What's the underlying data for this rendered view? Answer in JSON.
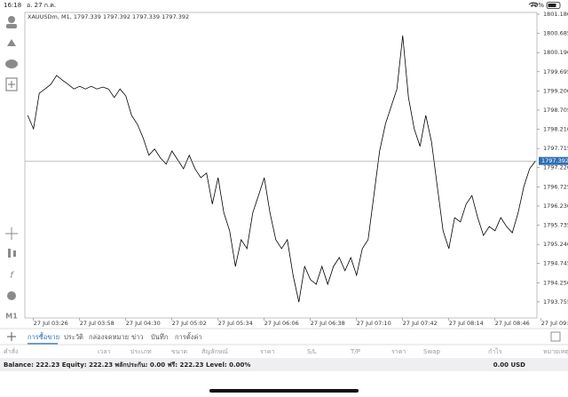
{
  "status_bar": {
    "time": "16:18",
    "date": "อ. 27 ก.ค.",
    "battery": "79%"
  },
  "toolbar": {
    "timeframe": "M1"
  },
  "chart_data": {
    "type": "line",
    "title": "XAUUSDm, M1, 1797.339 1797.392 1797.339 1797.392",
    "categories": [
      null,
      "27 Jul 03:26",
      null,
      null,
      null,
      null,
      null,
      null,
      null,
      "27 Jul 03:58",
      null,
      null,
      null,
      null,
      null,
      null,
      null,
      "27 Jul 04:30",
      null,
      null,
      null,
      null,
      null,
      null,
      null,
      "27 Jul 05:02",
      null,
      null,
      null,
      null,
      null,
      null,
      null,
      "27 Jul 05:34",
      null,
      null,
      null,
      null,
      null,
      null,
      null,
      "27 Jul 06:06",
      null,
      null,
      null,
      null,
      null,
      null,
      null,
      "27 Jul 06:38",
      null,
      null,
      null,
      null,
      null,
      null,
      null,
      "27 Jul 07:10",
      null,
      null,
      null,
      null,
      null,
      null,
      null,
      "27 Jul 07:42",
      null,
      null,
      null,
      null,
      null,
      null,
      null,
      "27 Jul 08:14",
      null,
      null,
      null,
      null,
      null,
      null,
      null,
      "27 Jul 08:46",
      null,
      null,
      null,
      null,
      null,
      null,
      null,
      "27 Jul 09:18"
    ],
    "values": [
      1798.57,
      1798.22,
      1799.14,
      1799.25,
      1799.37,
      1799.6,
      1799.48,
      1799.37,
      1799.25,
      1799.32,
      1799.25,
      1799.32,
      1799.25,
      1799.3,
      1799.25,
      1799.03,
      1799.25,
      1799.07,
      1798.57,
      1798.34,
      1797.99,
      1797.54,
      1797.7,
      1797.47,
      1797.31,
      1797.65,
      1797.42,
      1797.19,
      1797.54,
      1797.19,
      1796.96,
      1797.08,
      1796.28,
      1796.96,
      1796.05,
      1795.59,
      1794.67,
      1795.36,
      1795.13,
      1796.05,
      1796.5,
      1796.96,
      1796.05,
      1795.36,
      1795.13,
      1795.36,
      1794.44,
      1793.75,
      1794.67,
      1794.33,
      1794.21,
      1794.67,
      1794.21,
      1794.67,
      1794.9,
      1794.56,
      1794.9,
      1794.44,
      1795.13,
      1795.36,
      1796.5,
      1797.65,
      1798.34,
      1798.8,
      1799.25,
      1800.63,
      1799.03,
      1798.22,
      1797.77,
      1798.57,
      1797.88,
      1796.73,
      1795.59,
      1795.13,
      1795.93,
      1795.82,
      1796.28,
      1796.5,
      1795.93,
      1795.47,
      1795.7,
      1795.59,
      1795.93,
      1795.7,
      1795.54,
      1796.05,
      1796.73,
      1797.19,
      1797.39,
      null
    ],
    "color": "#000000",
    "ylim": [
      1793.34,
      1801.226
    ],
    "yticks": [
      {
        "value": 1801.18,
        "label": "1801.180"
      },
      1800.685,
      {
        "value": 1800.19,
        "label": "1800.190"
      },
      1799.695,
      {
        "value": 1799.2,
        "label": "1799.200"
      },
      1798.705,
      {
        "value": 1798.21,
        "label": "1798.210"
      },
      1797.715,
      {
        "value": 1797.22,
        "label": "1797.220"
      },
      1796.725,
      {
        "value": 1796.23,
        "label": "1796.230"
      },
      1795.735,
      {
        "value": 1795.24,
        "label": "1795.240"
      },
      1794.745,
      {
        "value": 1794.25,
        "label": "1794.250"
      },
      1793.755
    ],
    "current_price": 1797.392,
    "current_price_color": "#2f6fb5",
    "grid": false
  },
  "tabs": [
    "การซื้อขาย",
    "ประวัติ",
    "กล่องจดหมาย",
    "ข่าว",
    "บันทึก",
    "การตั้งค่า"
  ],
  "columns": [
    "คำสั่ง",
    "เวลา",
    "ประเภท",
    "ขนาด",
    "สัญลักษณ์",
    "ราคา",
    "S/L",
    "T/P",
    "ราคา",
    "Swap",
    "กำไร",
    "หมายเหตุ"
  ],
  "balance": {
    "summary": "Balance: 222.23 Equity: 222.23 พลักประกัน: 0.00 ฟรี: 222.23 Level: 0.00%",
    "profit": "0.00 USD"
  }
}
